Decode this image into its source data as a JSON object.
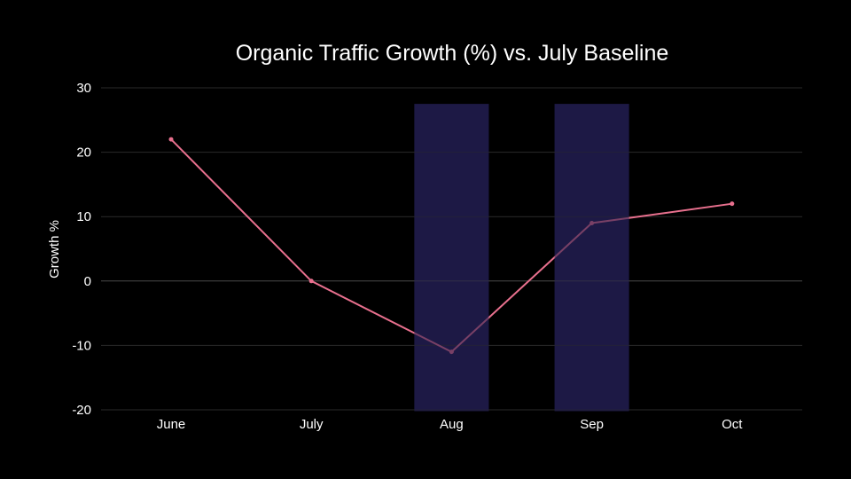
{
  "chart_data": {
    "type": "line",
    "title": "Organic Traffic Growth (%) vs. July Baseline",
    "xlabel": "",
    "ylabel": "Growth %",
    "categories": [
      "June",
      "July",
      "Aug",
      "Sep",
      "Oct"
    ],
    "series": [
      {
        "values": [
          22,
          0,
          -11,
          9,
          12
        ],
        "color": "#e8708e"
      }
    ],
    "highlighted_categories": [
      "Aug",
      "Sep"
    ],
    "highlight_color": "#1e1a45",
    "ylim": [
      -20,
      30
    ],
    "yticks": [
      -20,
      -10,
      0,
      10,
      20,
      30
    ],
    "grid": true,
    "background": "#000000"
  }
}
